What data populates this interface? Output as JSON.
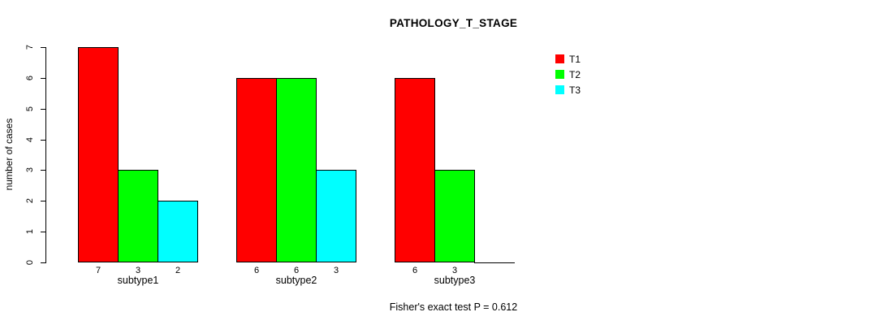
{
  "chart_data": {
    "type": "bar",
    "title": "PATHOLOGY_T_STAGE",
    "xlabel": "",
    "ylabel": "number of cases",
    "categories": [
      "subtype1",
      "subtype2",
      "subtype3"
    ],
    "series": [
      {
        "name": "T1",
        "color": "#ff0000",
        "values": [
          7,
          6,
          6
        ]
      },
      {
        "name": "T2",
        "color": "#00ff00",
        "values": [
          3,
          6,
          3
        ]
      },
      {
        "name": "T3",
        "color": "#00ffff",
        "values": [
          2,
          3,
          0
        ]
      }
    ],
    "ylim": [
      0,
      7
    ],
    "yticks": [
      0,
      1,
      2,
      3,
      4,
      5,
      6,
      7
    ],
    "grid": false,
    "legend_position": "right",
    "bar_value_labels": true,
    "annotation": "Fisher's exact test P = 0.612"
  }
}
